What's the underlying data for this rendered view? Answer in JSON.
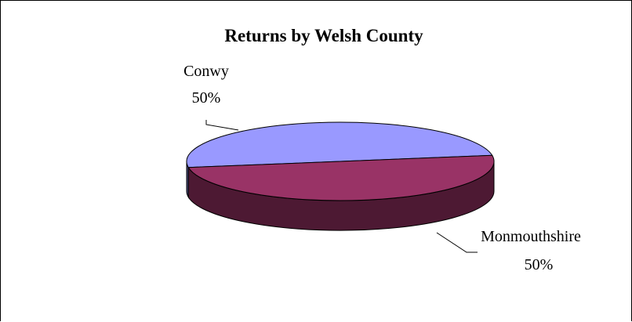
{
  "chart_data": {
    "type": "pie",
    "title": "Returns by Welsh County",
    "slices": [
      {
        "label": "Conwy",
        "value": 50,
        "percent_label": "50%",
        "top_color": "#9999ff",
        "side_color": "#4d4d80"
      },
      {
        "label": "Monmouthshire",
        "value": 50,
        "percent_label": "50%",
        "top_color": "#993366",
        "side_color": "#4d1933"
      }
    ],
    "style": "3d",
    "legend": "none"
  }
}
